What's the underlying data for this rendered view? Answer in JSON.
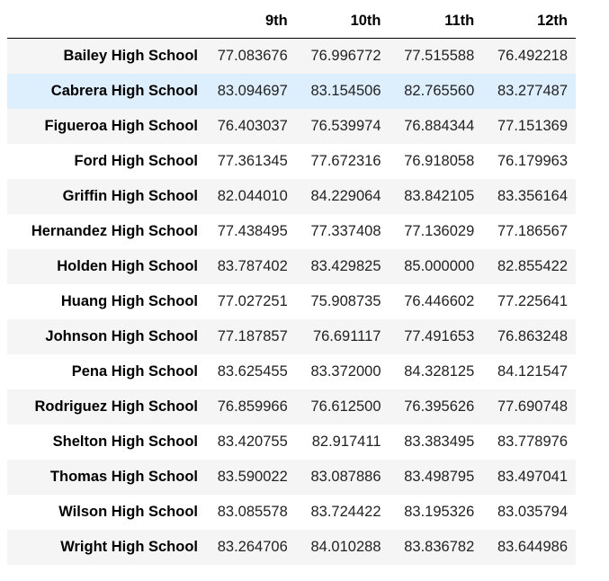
{
  "table": {
    "columns": [
      "",
      "9th",
      "10th",
      "11th",
      "12th"
    ],
    "highlighted_row_index": 1,
    "colors": {
      "stripe": "#f5f5f5",
      "hover": "#ddeefc",
      "rule": "#000000"
    },
    "rows": [
      {
        "school": "Bailey High School",
        "values": [
          "77.083676",
          "76.996772",
          "77.515588",
          "76.492218"
        ]
      },
      {
        "school": "Cabrera High School",
        "values": [
          "83.094697",
          "83.154506",
          "82.765560",
          "83.277487"
        ]
      },
      {
        "school": "Figueroa High School",
        "values": [
          "76.403037",
          "76.539974",
          "76.884344",
          "77.151369"
        ]
      },
      {
        "school": "Ford High School",
        "values": [
          "77.361345",
          "77.672316",
          "76.918058",
          "76.179963"
        ]
      },
      {
        "school": "Griffin High School",
        "values": [
          "82.044010",
          "84.229064",
          "83.842105",
          "83.356164"
        ]
      },
      {
        "school": "Hernandez High School",
        "values": [
          "77.438495",
          "77.337408",
          "77.136029",
          "77.186567"
        ]
      },
      {
        "school": "Holden High School",
        "values": [
          "83.787402",
          "83.429825",
          "85.000000",
          "82.855422"
        ]
      },
      {
        "school": "Huang High School",
        "values": [
          "77.027251",
          "75.908735",
          "76.446602",
          "77.225641"
        ]
      },
      {
        "school": "Johnson High School",
        "values": [
          "77.187857",
          "76.691117",
          "77.491653",
          "76.863248"
        ]
      },
      {
        "school": "Pena High School",
        "values": [
          "83.625455",
          "83.372000",
          "84.328125",
          "84.121547"
        ]
      },
      {
        "school": "Rodriguez High School",
        "values": [
          "76.859966",
          "76.612500",
          "76.395626",
          "77.690748"
        ]
      },
      {
        "school": "Shelton High School",
        "values": [
          "83.420755",
          "82.917411",
          "83.383495",
          "83.778976"
        ]
      },
      {
        "school": "Thomas High School",
        "values": [
          "83.590022",
          "83.087886",
          "83.498795",
          "83.497041"
        ]
      },
      {
        "school": "Wilson High School",
        "values": [
          "83.085578",
          "83.724422",
          "83.195326",
          "83.035794"
        ]
      },
      {
        "school": "Wright High School",
        "values": [
          "83.264706",
          "84.010288",
          "83.836782",
          "83.644986"
        ]
      }
    ]
  }
}
